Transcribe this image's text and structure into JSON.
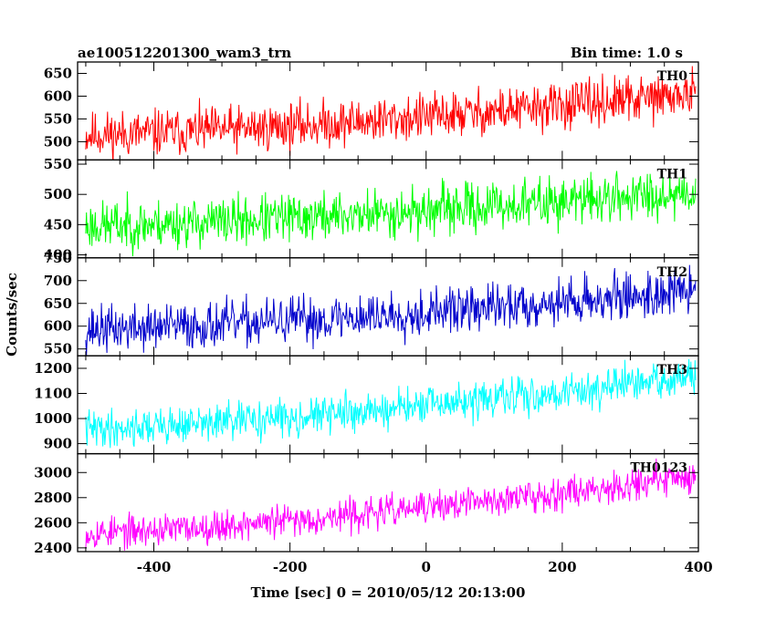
{
  "header": {
    "title": "ae100512201300_wam3_trn",
    "bin_time": "Bin time: 1.0 s"
  },
  "chart_data": {
    "type": "line",
    "title": "ae100512201300_wam3_trn",
    "subtitle": "Bin time: 1.0 s",
    "xlabel": "Time [sec] 0 = 2010/05/12 20:13:00",
    "ylabel": "Counts/sec",
    "xlim": [
      -512,
      400
    ],
    "xticks": [
      -400,
      -200,
      0,
      200,
      400
    ],
    "grid": false,
    "panels": [
      {
        "name": "TH0",
        "color": "#ff0000",
        "ylim": [
          460,
          675
        ],
        "yticks": [
          500,
          550,
          600,
          650
        ],
        "start": 515,
        "end": 605,
        "amp": 38,
        "seed": 11
      },
      {
        "name": "TH1",
        "color": "#00ff00",
        "ylim": [
          395,
          557
        ],
        "yticks": [
          400,
          450,
          500,
          550
        ],
        "start": 448,
        "end": 505,
        "amp": 30,
        "seed": 23
      },
      {
        "name": "TH2",
        "color": "#0000cc",
        "ylim": [
          535,
          750
        ],
        "yticks": [
          550,
          600,
          650,
          700,
          750
        ],
        "start": 593,
        "end": 678,
        "amp": 38,
        "seed": 37
      },
      {
        "name": "TH3",
        "color": "#00ffff",
        "ylim": [
          860,
          1250
        ],
        "yticks": [
          900,
          1000,
          1100,
          1200
        ],
        "start": 960,
        "end": 1165,
        "amp": 55,
        "seed": 41
      },
      {
        "name": "TH0123",
        "color": "#ff00ff",
        "ylim": [
          2370,
          3150
        ],
        "yticks": [
          2400,
          2600,
          2800,
          3000
        ],
        "start": 2520,
        "end": 2975,
        "amp": 95,
        "seed": 53
      }
    ]
  }
}
